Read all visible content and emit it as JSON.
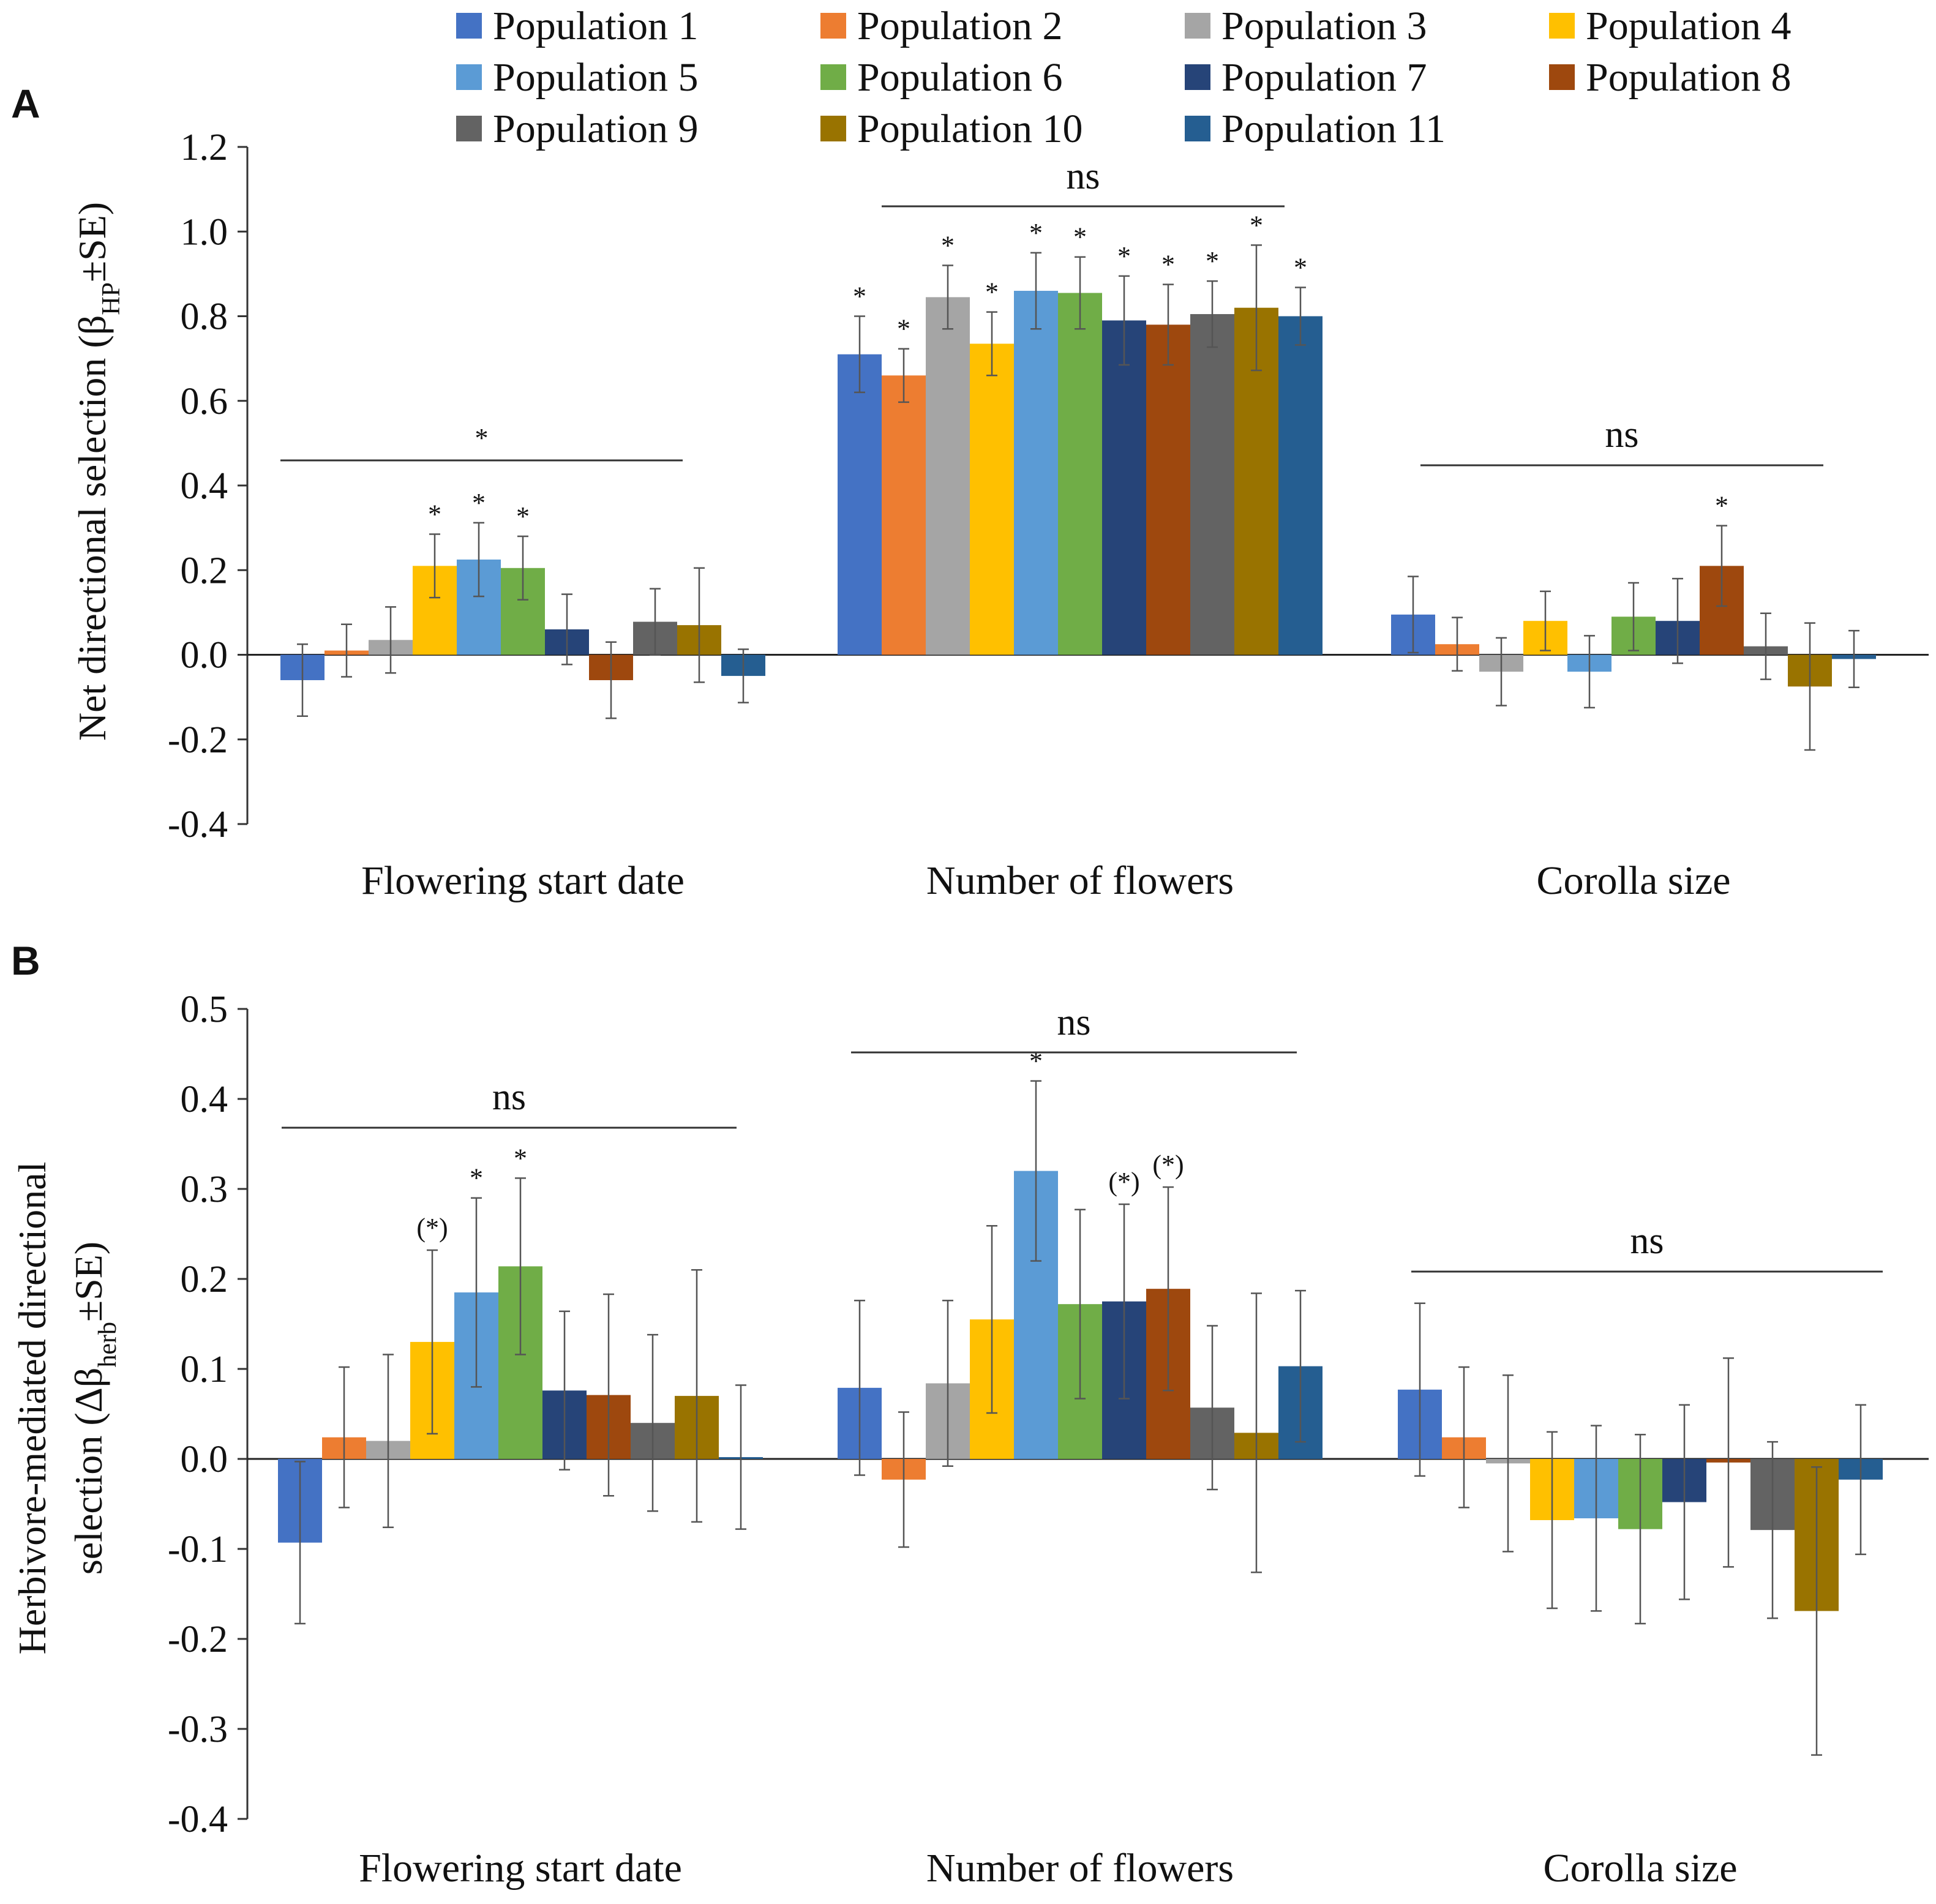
{
  "colors": [
    "#4472c4",
    "#ed7d31",
    "#a5a5a5",
    "#ffc000",
    "#5b9bd5",
    "#70ad47",
    "#264478",
    "#9e480e",
    "#636363",
    "#997300",
    "#255e91"
  ],
  "legend": [
    "Population 1",
    "Population 2",
    "Population 3",
    "Population 4",
    "Population 5",
    "Population 6",
    "Population 7",
    "Population 8",
    "Population 9",
    "Population 10",
    "Population 11"
  ],
  "chart_data": [
    {
      "type": "bar",
      "panel": "A",
      "ylabel_main": "Net directional selection (β",
      "ylabel_sub": "HP",
      "ylabel_tail": "±SE)",
      "ylim": [
        -0.4,
        1.2
      ],
      "yticks": [
        "1.2",
        "1.0",
        "0.8",
        "0.6",
        "0.4",
        "0.2",
        "0.0",
        "-0.2",
        "-0.4"
      ],
      "categories": [
        "Flowering start date",
        "Number of flowers",
        "Corolla size"
      ],
      "group_sig": [
        "*",
        "ns",
        "ns"
      ],
      "series": [
        {
          "name": "Population 1",
          "values": [
            -0.06,
            0.71,
            0.095
          ],
          "errors": [
            0.085,
            0.09,
            0.09
          ],
          "sig": [
            "",
            "*",
            ""
          ]
        },
        {
          "name": "Population 2",
          "values": [
            0.01,
            0.66,
            0.025
          ],
          "errors": [
            0.062,
            0.063,
            0.063
          ],
          "sig": [
            "",
            "*",
            ""
          ]
        },
        {
          "name": "Population 3",
          "values": [
            0.035,
            0.845,
            -0.04
          ],
          "errors": [
            0.078,
            0.075,
            0.08
          ],
          "sig": [
            "",
            "*",
            ""
          ]
        },
        {
          "name": "Population 4",
          "values": [
            0.21,
            0.735,
            0.08
          ],
          "errors": [
            0.075,
            0.075,
            0.07
          ],
          "sig": [
            "*",
            "*",
            ""
          ]
        },
        {
          "name": "Population 5",
          "values": [
            0.225,
            0.86,
            -0.04
          ],
          "errors": [
            0.087,
            0.09,
            0.085
          ],
          "sig": [
            "*",
            "*",
            ""
          ]
        },
        {
          "name": "Population 6",
          "values": [
            0.205,
            0.855,
            0.09
          ],
          "errors": [
            0.075,
            0.085,
            0.08
          ],
          "sig": [
            "*",
            "*",
            ""
          ]
        },
        {
          "name": "Population 7",
          "values": [
            0.06,
            0.79,
            0.08
          ],
          "errors": [
            0.083,
            0.105,
            0.1
          ],
          "sig": [
            "",
            "*",
            ""
          ]
        },
        {
          "name": "Population 8",
          "values": [
            -0.06,
            0.78,
            0.21
          ],
          "errors": [
            0.09,
            0.095,
            0.095
          ],
          "sig": [
            "",
            "*",
            "*"
          ]
        },
        {
          "name": "Population 9",
          "values": [
            0.078,
            0.805,
            0.02
          ],
          "errors": [
            0.078,
            0.078,
            0.078
          ],
          "sig": [
            "",
            "*",
            ""
          ]
        },
        {
          "name": "Population 10",
          "values": [
            0.07,
            0.82,
            -0.075
          ],
          "errors": [
            0.135,
            0.148,
            0.15
          ],
          "sig": [
            "",
            "*",
            ""
          ]
        },
        {
          "name": "Population 11",
          "values": [
            -0.05,
            0.8,
            -0.01
          ],
          "errors": [
            0.063,
            0.068,
            0.067
          ],
          "sig": [
            "",
            "*",
            ""
          ]
        }
      ]
    },
    {
      "type": "bar",
      "panel": "B",
      "ylabel_line1": "Herbivore-mediated directional",
      "ylabel_main": "selection (Δβ",
      "ylabel_sub": "herb",
      "ylabel_tail": "±SE)",
      "ylim": [
        -0.4,
        0.5
      ],
      "yticks": [
        "0.5",
        "0.4",
        "0.3",
        "0.2",
        "0.1",
        "0.0",
        "-0.1",
        "-0.2",
        "-0.3",
        "-0.4"
      ],
      "categories": [
        "Flowering start date",
        "Number of flowers",
        "Corolla size"
      ],
      "group_sig": [
        "ns",
        "ns",
        "ns"
      ],
      "series": [
        {
          "name": "Population 1",
          "values": [
            -0.093,
            0.079,
            0.077
          ],
          "errors": [
            0.09,
            0.097,
            0.096
          ],
          "sig": [
            "",
            "",
            ""
          ]
        },
        {
          "name": "Population 2",
          "values": [
            0.024,
            -0.023,
            0.024
          ],
          "errors": [
            0.078,
            0.075,
            0.078
          ],
          "sig": [
            "",
            "",
            ""
          ]
        },
        {
          "name": "Population 3",
          "values": [
            0.02,
            0.084,
            -0.005
          ],
          "errors": [
            0.096,
            0.092,
            0.098
          ],
          "sig": [
            "",
            "",
            ""
          ]
        },
        {
          "name": "Population 4",
          "values": [
            0.13,
            0.155,
            -0.068
          ],
          "errors": [
            0.102,
            0.104,
            0.098
          ],
          "sig": [
            "(*)",
            "",
            ""
          ]
        },
        {
          "name": "Population 5",
          "values": [
            0.185,
            0.32,
            -0.066
          ],
          "errors": [
            0.105,
            0.1,
            0.103
          ],
          "sig": [
            "*",
            "*",
            ""
          ]
        },
        {
          "name": "Population 6",
          "values": [
            0.214,
            0.172,
            -0.078
          ],
          "errors": [
            0.098,
            0.105,
            0.105
          ],
          "sig": [
            "*",
            "",
            ""
          ]
        },
        {
          "name": "Population 7",
          "values": [
            0.076,
            0.175,
            -0.048
          ],
          "errors": [
            0.088,
            0.108,
            0.108
          ],
          "sig": [
            "",
            "(*)",
            ""
          ]
        },
        {
          "name": "Population 8",
          "values": [
            0.071,
            0.189,
            -0.004
          ],
          "errors": [
            0.112,
            0.113,
            0.116
          ],
          "sig": [
            "",
            "(*)",
            ""
          ]
        },
        {
          "name": "Population 9",
          "values": [
            0.04,
            0.057,
            -0.079
          ],
          "errors": [
            0.098,
            0.091,
            0.098
          ],
          "sig": [
            "",
            "",
            ""
          ]
        },
        {
          "name": "Population 10",
          "values": [
            0.07,
            0.029,
            -0.169
          ],
          "errors": [
            0.14,
            0.155,
            0.16
          ],
          "sig": [
            "",
            "",
            ""
          ]
        },
        {
          "name": "Population 11",
          "values": [
            0.002,
            0.103,
            -0.023
          ],
          "errors": [
            0.08,
            0.084,
            0.083
          ],
          "sig": [
            "",
            "",
            ""
          ]
        }
      ]
    }
  ]
}
